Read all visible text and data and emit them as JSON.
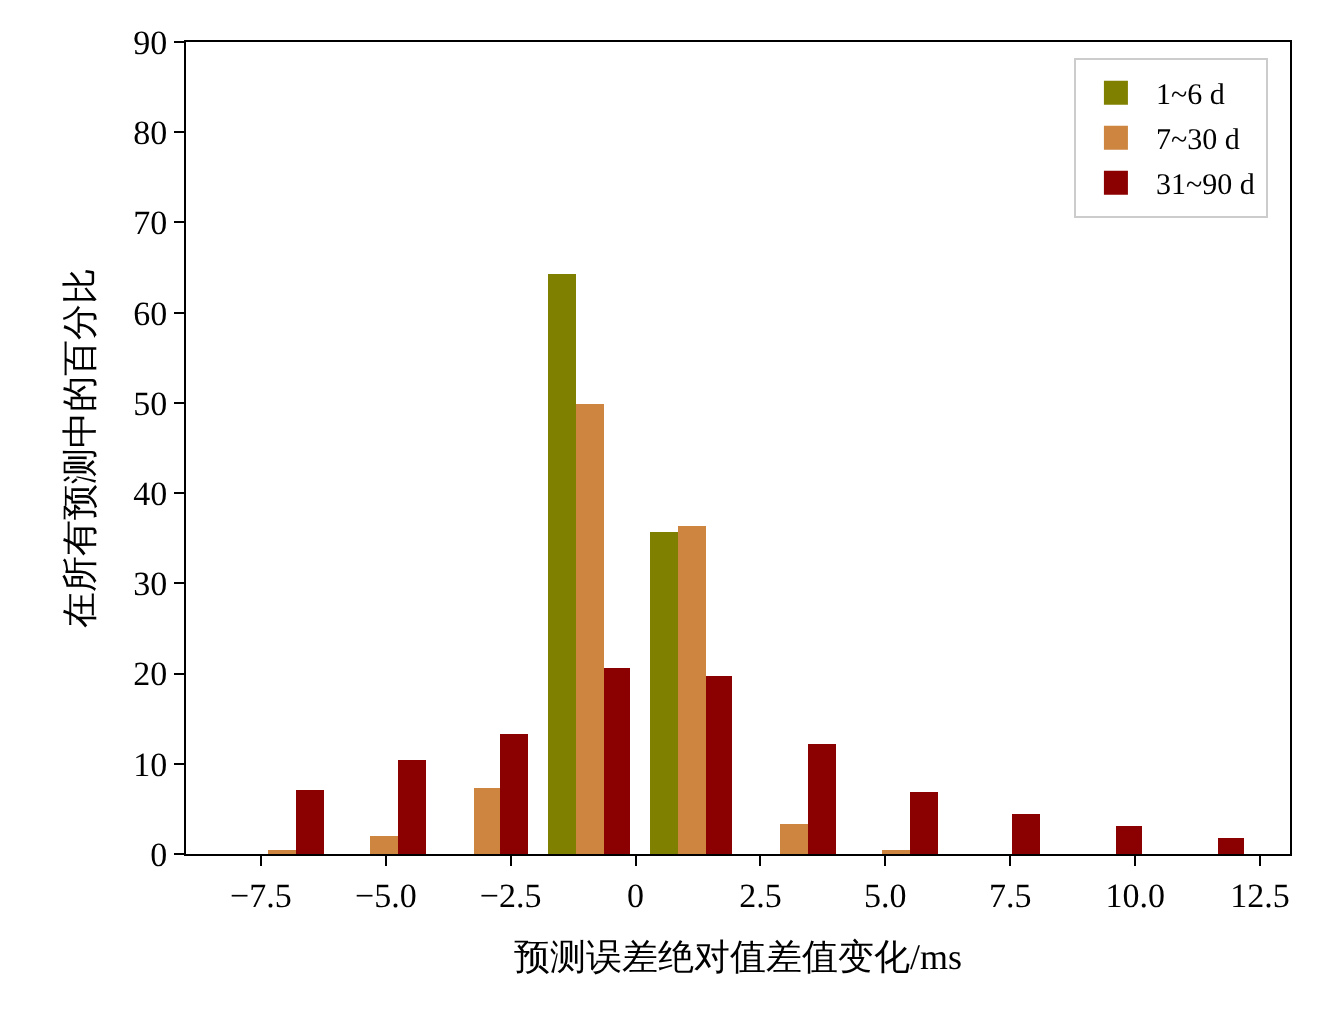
{
  "chart_data": {
    "type": "histogram",
    "xlabel": "预测误差绝对值差值变化/ms",
    "ylabel": "在所有预测中的百分比",
    "bins": [
      -8.1,
      -6.05,
      -4.0,
      -1.95,
      0.1,
      2.15,
      4.2,
      6.25,
      8.3,
      10.35,
      12.4
    ],
    "series": [
      {
        "name": "1~6 d",
        "color": "#808000",
        "values": [
          0,
          0,
          0,
          64.2,
          35.8,
          0,
          0,
          0,
          0,
          0
        ]
      },
      {
        "name": "7~30 d",
        "color": "#cd853f",
        "values": [
          0.3,
          1.9,
          7.3,
          49.8,
          36.4,
          3.3,
          0.5,
          0,
          0,
          0
        ]
      },
      {
        "name": "31~90 d",
        "color": "#8b0000",
        "values": [
          7,
          10.5,
          13.4,
          20.7,
          19.8,
          12.1,
          6.8,
          4.4,
          3.1,
          1.7
        ]
      }
    ],
    "xlim": [
      -9.0,
      13.1
    ],
    "xticks": [
      {
        "value": -7.5,
        "label": "−7.5"
      },
      {
        "value": -5,
        "label": "−5.0"
      },
      {
        "value": -2.5,
        "label": "−2.5"
      },
      {
        "value": 0,
        "label": "0"
      },
      {
        "value": 2.5,
        "label": "2.5"
      },
      {
        "value": 5,
        "label": "5.0"
      },
      {
        "value": 7.5,
        "label": "7.5"
      },
      {
        "value": 10,
        "label": "10.0"
      },
      {
        "value": 12.5,
        "label": "12.5"
      }
    ],
    "ylim": [
      0,
      90
    ],
    "yticks": [
      0,
      10,
      20,
      30,
      40,
      50,
      60,
      70,
      80,
      90
    ],
    "legend": "top right"
  }
}
